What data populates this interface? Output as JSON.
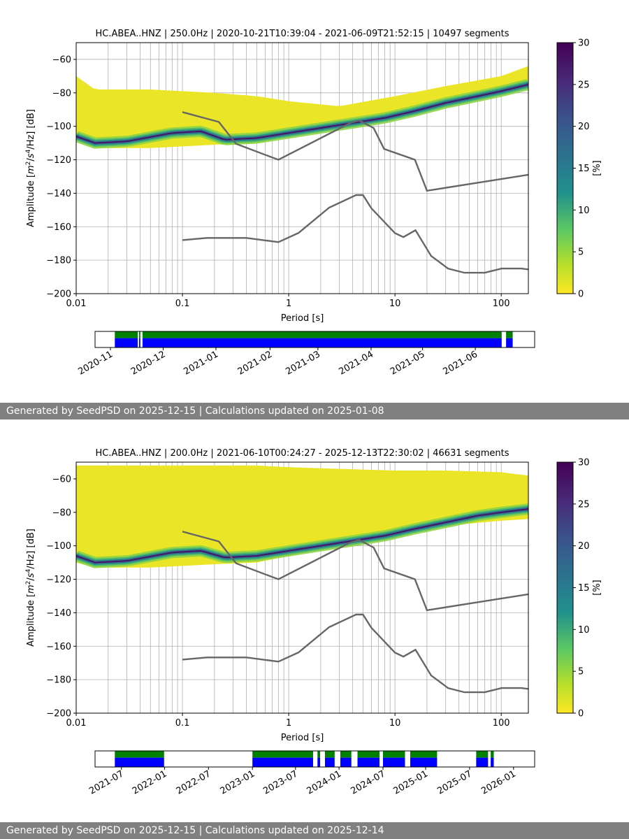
{
  "chart_data": [
    {
      "type": "heatmap",
      "title": "HC.ABEA..HNZ | 250.0Hz | 2020-10-21T10:39:04 - 2021-06-09T21:52:15 | 10497 segments",
      "xlabel": "Period [s]",
      "ylabel_parts": [
        "Amplitude [",
        "m",
        "2",
        "/",
        "s",
        "4",
        "/Hz] [dB]"
      ],
      "xscale": "log",
      "xlim": [
        0.01,
        180
      ],
      "ylim": [
        -200,
        -50
      ],
      "x_ticks": [
        0.01,
        0.1,
        1,
        10,
        100
      ],
      "x_tick_labels": [
        "0.01",
        "0.1",
        "1",
        "10",
        "100"
      ],
      "y_ticks": [
        -200,
        -180,
        -160,
        -140,
        -120,
        -100,
        -80,
        -60
      ],
      "y_tick_labels": [
        "−200",
        "−180",
        "−160",
        "−140",
        "−120",
        "−100",
        "−80",
        "−60"
      ],
      "grid": true,
      "colorbar": {
        "label": "[%]",
        "range": [
          0,
          30
        ],
        "ticks": [
          0,
          5,
          10,
          15,
          20,
          25,
          30
        ],
        "tick_labels": [
          "0",
          "5",
          "10",
          "15",
          "20",
          "25",
          "30"
        ],
        "colormap": "viridis_r"
      },
      "mode_curve": {
        "x": [
          0.01,
          0.015,
          0.03,
          0.08,
          0.15,
          0.25,
          0.5,
          1,
          2,
          4,
          8,
          15,
          30,
          60,
          100,
          180
        ],
        "y": [
          -106,
          -110,
          -109,
          -104,
          -103,
          -108,
          -107,
          -104,
          -101,
          -98,
          -95,
          -91,
          -86,
          -82,
          -79,
          -75
        ]
      },
      "spread": {
        "x": [
          0.01,
          0.015,
          0.05,
          0.2,
          0.5,
          1,
          3,
          10,
          30,
          100,
          180
        ],
        "top": [
          -70,
          -78,
          -78,
          -80,
          -82,
          -85,
          -88,
          -82,
          -76,
          -70,
          -64
        ],
        "bottom": [
          -108,
          -113,
          -113,
          -111,
          -110,
          -106,
          -100,
          -92,
          -86,
          -80,
          -77
        ]
      },
      "noise_models": [
        {
          "name": "NHNM",
          "x": [
            0.1,
            0.22,
            0.32,
            0.8,
            3.8,
            4.6,
            6.3,
            7.9,
            15.4,
            20,
            354.8
          ],
          "y": [
            -91.5,
            -97.4,
            -110.5,
            -120,
            -98,
            -96.5,
            -101,
            -113.5,
            -120,
            -138.5,
            -126
          ]
        },
        {
          "name": "NLNM",
          "x": [
            0.1,
            0.17,
            0.4,
            0.8,
            1.24,
            2.4,
            4.3,
            5,
            6,
            10,
            12,
            15.6,
            21.9,
            31.6,
            45,
            70,
            101,
            154,
            328
          ],
          "y": [
            -168,
            -166.7,
            -166.7,
            -169.2,
            -163.7,
            -148.6,
            -141.1,
            -141.1,
            -149,
            -163.8,
            -166.2,
            -162.1,
            -177.5,
            -185,
            -187.5,
            -187.5,
            -185,
            -185,
            -187.5
          ]
        }
      ],
      "timeline": {
        "ticks": [
          "2020-11",
          "2020-12",
          "2021-01",
          "2021-02",
          "2021-03",
          "2021-04",
          "2021-05",
          "2021-06"
        ],
        "tick_frac": [
          0.035,
          0.155,
          0.275,
          0.398,
          0.507,
          0.628,
          0.745,
          0.865
        ],
        "coverage_frac": [
          [
            0.045,
            0.097
          ],
          [
            0.1,
            0.103
          ],
          [
            0.108,
            0.925
          ],
          [
            0.935,
            0.95
          ]
        ],
        "colors": {
          "available": "#008000",
          "processed": "#0000ff"
        }
      }
    },
    {
      "type": "heatmap",
      "title": "HC.ABEA..HNZ | 200.0Hz | 2021-06-10T00:24:27 - 2025-12-13T22:30:02 | 46631 segments",
      "xlabel": "Period [s]",
      "ylabel_parts": [
        "Amplitude [",
        "m",
        "2",
        "/",
        "s",
        "4",
        "/Hz] [dB]"
      ],
      "xscale": "log",
      "xlim": [
        0.01,
        180
      ],
      "ylim": [
        -200,
        -50
      ],
      "x_ticks": [
        0.01,
        0.1,
        1,
        10,
        100
      ],
      "x_tick_labels": [
        "0.01",
        "0.1",
        "1",
        "10",
        "100"
      ],
      "y_ticks": [
        -200,
        -180,
        -160,
        -140,
        -120,
        -100,
        -80,
        -60
      ],
      "y_tick_labels": [
        "−200",
        "−180",
        "−160",
        "−140",
        "−120",
        "−100",
        "−80",
        "−60"
      ],
      "grid": true,
      "colorbar": {
        "label": "[%]",
        "range": [
          0,
          30
        ],
        "ticks": [
          0,
          5,
          10,
          15,
          20,
          25,
          30
        ],
        "tick_labels": [
          "0",
          "5",
          "10",
          "15",
          "20",
          "25",
          "30"
        ],
        "colormap": "viridis_r"
      },
      "mode_curve": {
        "x": [
          0.01,
          0.015,
          0.03,
          0.08,
          0.15,
          0.25,
          0.5,
          1,
          2,
          4,
          8,
          15,
          30,
          60,
          100,
          180
        ],
        "y": [
          -106,
          -110,
          -109,
          -104,
          -103,
          -107,
          -106,
          -103,
          -100,
          -97,
          -94,
          -90,
          -86,
          -82,
          -80,
          -78
        ]
      },
      "spread": {
        "x": [
          0.01,
          0.015,
          0.05,
          0.2,
          0.5,
          1,
          3,
          10,
          30,
          100,
          180
        ],
        "top": [
          -52,
          -52,
          -52,
          -52,
          -52,
          -53,
          -54,
          -55,
          -55,
          -56,
          -58
        ],
        "bottom": [
          -110,
          -113,
          -113,
          -111,
          -110,
          -106,
          -100,
          -92,
          -88,
          -85,
          -84
        ]
      },
      "noise_models": [
        {
          "name": "NHNM",
          "x": [
            0.1,
            0.22,
            0.32,
            0.8,
            3.8,
            4.6,
            6.3,
            7.9,
            15.4,
            20,
            354.8
          ],
          "y": [
            -91.5,
            -97.4,
            -110.5,
            -120,
            -98,
            -96.5,
            -101,
            -113.5,
            -120,
            -138.5,
            -126
          ]
        },
        {
          "name": "NLNM",
          "x": [
            0.1,
            0.17,
            0.4,
            0.8,
            1.24,
            2.4,
            4.3,
            5,
            6,
            10,
            12,
            15.6,
            21.9,
            31.6,
            45,
            70,
            101,
            154,
            328
          ],
          "y": [
            -168,
            -166.7,
            -166.7,
            -169.2,
            -163.7,
            -148.6,
            -141.1,
            -141.1,
            -149,
            -163.8,
            -166.2,
            -162.1,
            -177.5,
            -185,
            -187.5,
            -187.5,
            -185,
            -185,
            -187.5
          ]
        }
      ],
      "timeline": {
        "ticks": [
          "2021-07",
          "2022-01",
          "2022-07",
          "2023-01",
          "2023-07",
          "2024-01",
          "2024-07",
          "2025-01",
          "2025-07",
          "2026-01"
        ],
        "tick_frac": [
          0.06,
          0.158,
          0.258,
          0.358,
          0.456,
          0.555,
          0.655,
          0.752,
          0.852,
          0.952
        ],
        "coverage_frac": [
          [
            0.045,
            0.157
          ],
          [
            0.358,
            0.496
          ],
          [
            0.506,
            0.512
          ],
          [
            0.523,
            0.545
          ],
          [
            0.558,
            0.583
          ],
          [
            0.597,
            0.647
          ],
          [
            0.655,
            0.705
          ],
          [
            0.717,
            0.778
          ],
          [
            0.867,
            0.894
          ],
          [
            0.9,
            0.907
          ]
        ],
        "colors": {
          "available": "#008000",
          "processed": "#0000ff"
        }
      }
    }
  ],
  "footers": [
    "Generated by SeedPSD on 2025-12-15 | Calculations updated on 2025-01-08",
    "Generated by SeedPSD on 2025-12-15 | Calculations updated on 2025-12-14"
  ]
}
